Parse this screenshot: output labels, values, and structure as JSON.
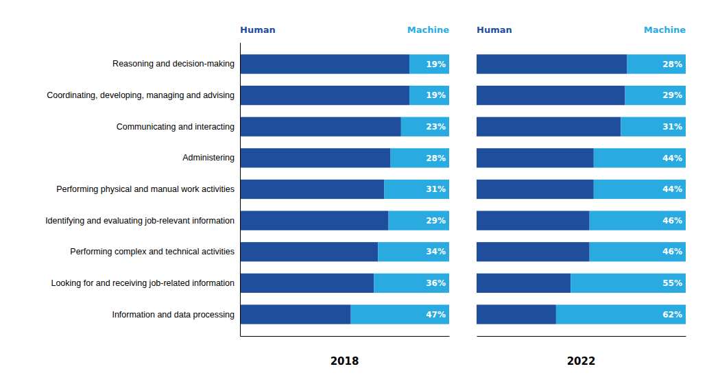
{
  "chart_data": [
    {
      "type": "bar",
      "orientation": "horizontal",
      "stacked": true,
      "title": "2018",
      "categories": [
        "Reasoning and decision-making",
        "Coordinating, developing, managing and advising",
        "Communicating and interacting",
        "Administering",
        "Performing physical and manual work activities",
        "Identifying and evaluating job-relevant information",
        "Performing complex and technical activities",
        "Looking for and receiving job-related information",
        "Information and data processing"
      ],
      "series": [
        {
          "name": "Human",
          "color": "#1f4e9c",
          "values": [
            81,
            81,
            77,
            72,
            69,
            71,
            66,
            64,
            53
          ]
        },
        {
          "name": "Machine",
          "color": "#29abe2",
          "values": [
            19,
            19,
            23,
            28,
            31,
            29,
            34,
            36,
            47
          ],
          "data_labels": true,
          "value_labels": [
            "19%",
            "19%",
            "23%",
            "28%",
            "31%",
            "29%",
            "34%",
            "36%",
            "47%"
          ]
        }
      ],
      "xlim": [
        0,
        100
      ],
      "tick_labels": "y"
    },
    {
      "type": "bar",
      "orientation": "horizontal",
      "stacked": true,
      "title": "2022",
      "categories": [
        "Reasoning and decision-making",
        "Coordinating, developing, managing and advising",
        "Communicating and interacting",
        "Administering",
        "Performing physical and manual work activities",
        "Identifying and evaluating job-relevant information",
        "Performing complex and technical activities",
        "Looking for and receiving job-related information",
        "Information and data processing"
      ],
      "series": [
        {
          "name": "Human",
          "color": "#1f4e9c",
          "values": [
            72,
            71,
            69,
            56,
            56,
            54,
            54,
            45,
            38
          ]
        },
        {
          "name": "Machine",
          "color": "#29abe2",
          "values": [
            28,
            29,
            31,
            44,
            44,
            46,
            46,
            55,
            62
          ],
          "data_labels": true,
          "value_labels": [
            "28%",
            "29%",
            "31%",
            "44%",
            "44%",
            "46%",
            "46%",
            "55%",
            "62%"
          ]
        }
      ],
      "xlim": [
        0,
        100
      ],
      "tick_labels": false
    }
  ]
}
